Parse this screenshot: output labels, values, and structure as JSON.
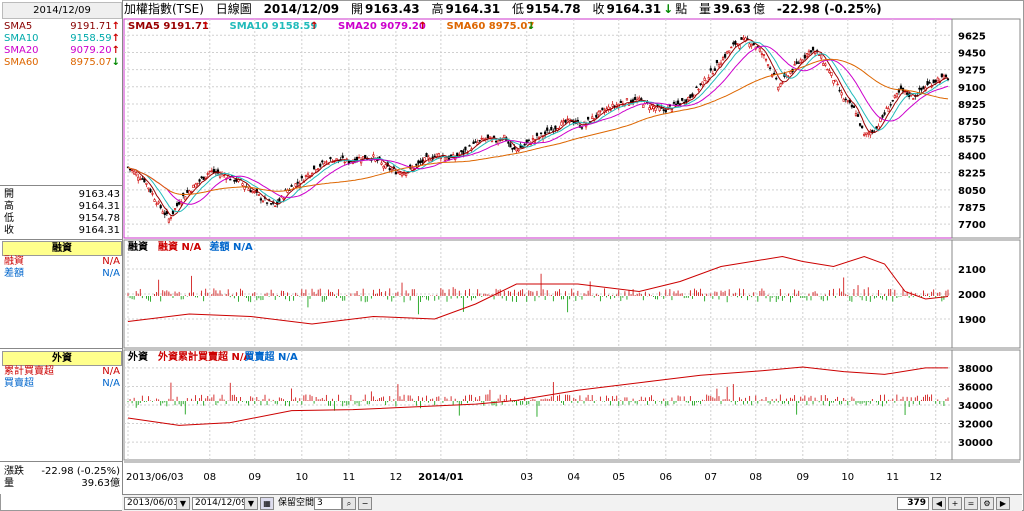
{
  "header": {
    "title": "加權指數(TSE)",
    "period": "日線圖",
    "date": "2014/12/09",
    "open_label": "開",
    "open": "9163.43",
    "high_label": "高",
    "high": "9164.31",
    "low_label": "低",
    "low": "9154.78",
    "close_label": "收",
    "close": "9164.31",
    "close_arrow": "↓",
    "point_label": "點",
    "volume_label": "量",
    "volume": "39.63",
    "volume_unit": "億",
    "change": "-22.98 (-0.25%)"
  },
  "sidebar": {
    "date": "2014/12/09",
    "sma": [
      {
        "label": "SMA5",
        "value": "9191.71",
        "arrow": "↑",
        "color": "#880000"
      },
      {
        "label": "SMA10",
        "value": "9158.59",
        "arrow": "↑",
        "color": "#00aaaa"
      },
      {
        "label": "SMA20",
        "value": "9079.20",
        "arrow": "↑",
        "color": "#cc00cc"
      },
      {
        "label": "SMA60",
        "value": "8975.07",
        "arrow": "↓",
        "color": "#dd6600"
      }
    ],
    "ohlc": [
      {
        "label": "開",
        "value": "9163.43"
      },
      {
        "label": "高",
        "value": "9164.31"
      },
      {
        "label": "低",
        "value": "9154.78"
      },
      {
        "label": "收",
        "value": "9164.31"
      }
    ],
    "margin_title": "融資",
    "margin_rows": [
      {
        "label": "融資",
        "value": "N/A",
        "color": "#cc0000"
      },
      {
        "label": "差額",
        "value": "N/A",
        "color": "#0066cc"
      }
    ],
    "foreign_title": "外資",
    "foreign_rows": [
      {
        "label": "累計買賣超",
        "value": "N/A",
        "color": "#cc0000"
      },
      {
        "label": "買賣超",
        "value": "N/A",
        "color": "#0066cc"
      }
    ],
    "change_label": "漲跌",
    "change_value": "-22.98 (-0.25%)",
    "volume_label": "量",
    "volume_value": "39.63億"
  },
  "bottom": {
    "start_date": "2013/06/03",
    "end_date": "2014/12/09",
    "zoom_label": "保留空間",
    "zoom_value": "3",
    "count": "379"
  },
  "chart_data": [
    {
      "type": "candlestick",
      "legend": [
        {
          "name": "SMA5",
          "value": "9191.71",
          "arrow": "↑",
          "color": "#990000"
        },
        {
          "name": "SMA10",
          "value": "9158.59",
          "arrow": "↑",
          "color": "#22bbbb"
        },
        {
          "name": "SMA20",
          "value": "9079.20",
          "arrow": "↑",
          "color": "#cc00cc"
        },
        {
          "name": "SMA60",
          "value": "8975.07",
          "arrow": "↓",
          "color": "#dd6600"
        }
      ],
      "ylim": [
        7600,
        9750
      ],
      "y_ticks": [
        7700,
        7875,
        8050,
        8225,
        8400,
        8575,
        8750,
        8925,
        9100,
        9275,
        9450,
        9625
      ],
      "x_ticks": [
        "2013/06/03",
        "08",
        "09",
        "10",
        "11",
        "12",
        "2014/01",
        "03",
        "04",
        "05",
        "06",
        "07",
        "08",
        "09",
        "10",
        "11",
        "12"
      ],
      "series_path": [
        [
          0,
          8280
        ],
        [
          8,
          8150
        ],
        [
          15,
          7900
        ],
        [
          20,
          7750
        ],
        [
          26,
          7960
        ],
        [
          33,
          8100
        ],
        [
          40,
          8240
        ],
        [
          47,
          8200
        ],
        [
          55,
          8130
        ],
        [
          60,
          8050
        ],
        [
          66,
          7950
        ],
        [
          72,
          7880
        ],
        [
          78,
          8050
        ],
        [
          85,
          8150
        ],
        [
          92,
          8280
        ],
        [
          100,
          8360
        ],
        [
          108,
          8340
        ],
        [
          114,
          8380
        ],
        [
          120,
          8380
        ],
        [
          126,
          8280
        ],
        [
          132,
          8230
        ],
        [
          138,
          8250
        ],
        [
          145,
          8350
        ],
        [
          152,
          8410
        ],
        [
          158,
          8370
        ],
        [
          164,
          8430
        ],
        [
          170,
          8520
        ],
        [
          175,
          8570
        ],
        [
          180,
          8550
        ],
        [
          184,
          8600
        ],
        [
          188,
          8450
        ],
        [
          192,
          8480
        ],
        [
          198,
          8560
        ],
        [
          204,
          8620
        ],
        [
          210,
          8700
        ],
        [
          217,
          8760
        ],
        [
          222,
          8700
        ],
        [
          228,
          8790
        ],
        [
          235,
          8880
        ],
        [
          243,
          8950
        ],
        [
          250,
          8960
        ],
        [
          256,
          8900
        ],
        [
          262,
          8860
        ],
        [
          268,
          8910
        ],
        [
          275,
          9000
        ],
        [
          282,
          9160
        ],
        [
          290,
          9370
        ],
        [
          297,
          9540
        ],
        [
          303,
          9580
        ],
        [
          308,
          9500
        ],
        [
          313,
          9350
        ],
        [
          318,
          9100
        ],
        [
          322,
          9200
        ],
        [
          328,
          9350
        ],
        [
          334,
          9480
        ],
        [
          338,
          9430
        ],
        [
          344,
          9220
        ],
        [
          350,
          8980
        ],
        [
          356,
          8850
        ],
        [
          360,
          8600
        ],
        [
          366,
          8680
        ],
        [
          372,
          8900
        ],
        [
          378,
          9060
        ],
        [
          384,
          9000
        ],
        [
          390,
          9100
        ],
        [
          396,
          9180
        ],
        [
          401,
          9190
        ]
      ]
    },
    {
      "type": "bar+line",
      "legend": [
        {
          "name": "融資",
          "value": "",
          "color": "#000000"
        },
        {
          "name": "融資",
          "value": "N/A",
          "color": "#cc0000"
        },
        {
          "name": "差額",
          "value": "N/A",
          "color": "#0066cc"
        }
      ],
      "ylim": [
        1800,
        2200
      ],
      "y_ticks": [
        1900,
        2000,
        2100
      ],
      "line_path": [
        [
          0,
          1890
        ],
        [
          30,
          1920
        ],
        [
          60,
          1910
        ],
        [
          90,
          1880
        ],
        [
          120,
          1910
        ],
        [
          150,
          1900
        ],
        [
          170,
          1960
        ],
        [
          190,
          2040
        ],
        [
          220,
          2040
        ],
        [
          250,
          2010
        ],
        [
          270,
          2050
        ],
        [
          290,
          2110
        ],
        [
          305,
          2130
        ],
        [
          320,
          2150
        ],
        [
          330,
          2130
        ],
        [
          345,
          2110
        ],
        [
          360,
          2150
        ],
        [
          370,
          2120
        ],
        [
          380,
          2010
        ],
        [
          390,
          1980
        ],
        [
          401,
          1990
        ]
      ]
    },
    {
      "type": "bar+line",
      "legend": [
        {
          "name": "外資",
          "value": "",
          "color": "#000000"
        },
        {
          "name": "外資累計買賣超",
          "value": "N/A",
          "color": "#cc0000"
        },
        {
          "name": "買賣超",
          "value": "N/A",
          "color": "#0066cc"
        }
      ],
      "ylim": [
        28500,
        39500
      ],
      "y_ticks": [
        30000,
        32000,
        34000,
        36000,
        38000
      ],
      "line_path": [
        [
          0,
          32600
        ],
        [
          25,
          31800
        ],
        [
          50,
          32100
        ],
        [
          80,
          33400
        ],
        [
          110,
          33500
        ],
        [
          140,
          33800
        ],
        [
          170,
          34100
        ],
        [
          190,
          34500
        ],
        [
          220,
          35600
        ],
        [
          250,
          36400
        ],
        [
          280,
          37200
        ],
        [
          310,
          37700
        ],
        [
          330,
          38100
        ],
        [
          350,
          37600
        ],
        [
          370,
          37300
        ],
        [
          390,
          38000
        ],
        [
          401,
          38000
        ]
      ]
    }
  ]
}
